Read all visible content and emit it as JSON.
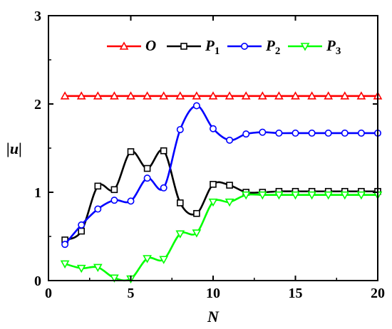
{
  "chart_data": {
    "type": "line",
    "xlabel": "N",
    "ylabel": "|u|",
    "xlim": [
      0,
      20
    ],
    "ylim": [
      0,
      3
    ],
    "xticks": [
      0,
      5,
      10,
      15,
      20
    ],
    "yticks": [
      0,
      1,
      2,
      3
    ],
    "x": [
      1,
      2,
      3,
      4,
      5,
      6,
      7,
      8,
      9,
      10,
      11,
      12,
      13,
      14,
      15,
      16,
      17,
      18,
      19,
      20
    ],
    "legend_position": "top",
    "series": [
      {
        "name": "O",
        "label_main": "O",
        "label_sub": "",
        "color": "#ff0000",
        "marker": "triangle-up",
        "values": [
          2.09,
          2.09,
          2.09,
          2.09,
          2.09,
          2.09,
          2.09,
          2.09,
          2.09,
          2.09,
          2.09,
          2.09,
          2.09,
          2.09,
          2.09,
          2.09,
          2.09,
          2.09,
          2.09,
          2.09
        ]
      },
      {
        "name": "P1",
        "label_main": "P",
        "label_sub": "1",
        "color": "#000000",
        "marker": "square",
        "values": [
          0.46,
          0.56,
          1.07,
          1.03,
          1.46,
          1.27,
          1.47,
          0.88,
          0.76,
          1.09,
          1.08,
          1.0,
          1.0,
          1.01,
          1.01,
          1.01,
          1.01,
          1.01,
          1.01,
          1.01
        ]
      },
      {
        "name": "P2",
        "label_main": "P",
        "label_sub": "2",
        "color": "#0000ff",
        "marker": "circle",
        "values": [
          0.41,
          0.63,
          0.81,
          0.91,
          0.9,
          1.16,
          1.05,
          1.71,
          1.98,
          1.72,
          1.59,
          1.66,
          1.68,
          1.67,
          1.67,
          1.67,
          1.67,
          1.67,
          1.67,
          1.67
        ]
      },
      {
        "name": "P3",
        "label_main": "P",
        "label_sub": "3",
        "color": "#00ff00",
        "marker": "triangle-down",
        "values": [
          0.19,
          0.14,
          0.15,
          0.03,
          0.02,
          0.25,
          0.24,
          0.53,
          0.54,
          0.89,
          0.89,
          0.97,
          0.97,
          0.97,
          0.97,
          0.97,
          0.97,
          0.97,
          0.97,
          0.97
        ]
      }
    ]
  }
}
